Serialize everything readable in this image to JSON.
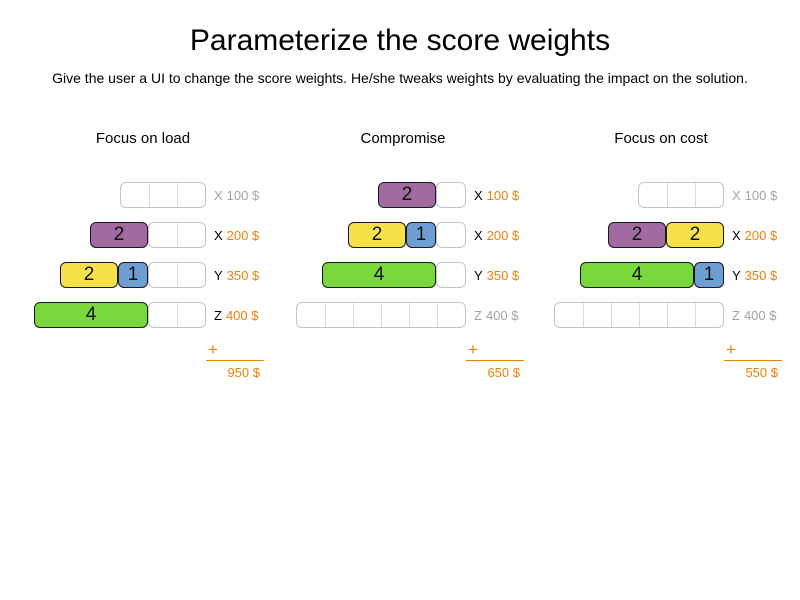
{
  "slide": {
    "title": "Parameterize the score weights",
    "subtitle": "Give the user a UI to change the score weights. He/she tweaks weights by evaluating the impact on the solution."
  },
  "plus_sign": "+",
  "colors": {
    "accent_orange": "#e8820a",
    "inactive_gray": "#a3a3a3",
    "track_border": "#c4c4c4",
    "cell_separator": "#d9d9d9",
    "block_border": "#1a1a1a",
    "task_colors": {
      "purple": "#a16ba1",
      "yellow": "#f6e14b",
      "blue": "#6e9ed4",
      "green": "#79d93c"
    }
  },
  "panels": [
    {
      "title": "Focus on load",
      "total": "950 $",
      "rows": [
        {
          "machine": "X",
          "price": "100 $",
          "active": false,
          "capacity": 3,
          "blocks": []
        },
        {
          "machine": "X",
          "price": "200 $",
          "active": true,
          "capacity": 4,
          "blocks": [
            {
              "value": 2,
              "color": "purple"
            }
          ]
        },
        {
          "machine": "Y",
          "price": "350 $",
          "active": true,
          "capacity": 5,
          "blocks": [
            {
              "value": 2,
              "color": "yellow"
            },
            {
              "value": 1,
              "color": "blue"
            }
          ]
        },
        {
          "machine": "Z",
          "price": "400 $",
          "active": true,
          "capacity": 6,
          "blocks": [
            {
              "value": 4,
              "color": "green"
            }
          ]
        }
      ]
    },
    {
      "title": "Compromise",
      "total": "650 $",
      "rows": [
        {
          "machine": "X",
          "price": "100 $",
          "active": true,
          "capacity": 3,
          "blocks": [
            {
              "value": 2,
              "color": "purple"
            }
          ]
        },
        {
          "machine": "X",
          "price": "200 $",
          "active": true,
          "capacity": 4,
          "blocks": [
            {
              "value": 2,
              "color": "yellow"
            },
            {
              "value": 1,
              "color": "blue"
            }
          ]
        },
        {
          "machine": "Y",
          "price": "350 $",
          "active": true,
          "capacity": 5,
          "blocks": [
            {
              "value": 4,
              "color": "green"
            }
          ]
        },
        {
          "machine": "Z",
          "price": "400 $",
          "active": false,
          "capacity": 6,
          "blocks": []
        }
      ]
    },
    {
      "title": "Focus on cost",
      "total": "550 $",
      "rows": [
        {
          "machine": "X",
          "price": "100 $",
          "active": false,
          "capacity": 3,
          "blocks": []
        },
        {
          "machine": "X",
          "price": "200 $",
          "active": true,
          "capacity": 4,
          "blocks": [
            {
              "value": 2,
              "color": "purple"
            },
            {
              "value": 2,
              "color": "yellow"
            }
          ]
        },
        {
          "machine": "Y",
          "price": "350 $",
          "active": true,
          "capacity": 5,
          "blocks": [
            {
              "value": 4,
              "color": "green"
            },
            {
              "value": 1,
              "color": "blue"
            }
          ]
        },
        {
          "machine": "Z",
          "price": "400 $",
          "active": false,
          "capacity": 6,
          "blocks": []
        }
      ]
    }
  ]
}
